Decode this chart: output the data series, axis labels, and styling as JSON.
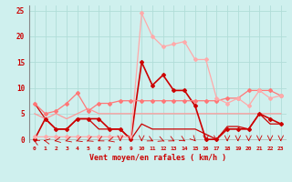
{
  "title": "",
  "xlabel": "Vent moyen/en rafales ( km/h )",
  "bg_color": "#cff0ee",
  "grid_color": "#b0ddd8",
  "xlim": [
    -0.5,
    23.5
  ],
  "ylim": [
    -0.5,
    26
  ],
  "yticks": [
    0,
    5,
    10,
    15,
    20,
    25
  ],
  "xticks": [
    0,
    1,
    2,
    3,
    4,
    5,
    6,
    7,
    8,
    9,
    10,
    11,
    12,
    13,
    14,
    15,
    16,
    17,
    18,
    19,
    20,
    21,
    22,
    23
  ],
  "series": [
    {
      "x": [
        0,
        1,
        2,
        3,
        4,
        5,
        6,
        7,
        8,
        9,
        10,
        11,
        12,
        13,
        14,
        15,
        16,
        17,
        18,
        19,
        20,
        21,
        22,
        23
      ],
      "y": [
        0,
        4,
        2,
        2,
        4,
        4,
        4,
        2,
        2,
        0,
        15,
        10.5,
        12.5,
        9.5,
        9.5,
        6.5,
        0,
        0,
        2,
        2,
        2,
        5,
        4,
        3
      ],
      "color": "#cc0000",
      "lw": 1.2,
      "marker": "D",
      "ms": 2.0
    },
    {
      "x": [
        0,
        1,
        2,
        3,
        4,
        5,
        6,
        7,
        8,
        9,
        10,
        11,
        12,
        13,
        14,
        15,
        16,
        17,
        18,
        19,
        20,
        21,
        22,
        23
      ],
      "y": [
        7,
        4,
        2,
        2,
        4,
        4,
        2,
        2,
        2,
        0,
        3,
        2,
        2,
        2,
        2,
        2,
        1,
        0,
        2.5,
        2.5,
        2,
        5,
        3,
        3
      ],
      "color": "#cc0000",
      "lw": 0.9,
      "marker": null,
      "ms": 0
    },
    {
      "x": [
        0,
        1,
        2,
        3,
        4,
        5,
        6,
        7,
        8,
        9,
        10,
        11,
        12,
        13,
        14,
        15,
        16,
        17,
        18,
        19,
        20,
        21,
        22,
        23
      ],
      "y": [
        7,
        5,
        5.5,
        7,
        9,
        5.5,
        7,
        7,
        7.5,
        7.5,
        7.5,
        7.5,
        7.5,
        7.5,
        7.5,
        7.5,
        7.5,
        7.5,
        8,
        8,
        9.5,
        9.5,
        9.5,
        8.5
      ],
      "color": "#ff7777",
      "lw": 0.9,
      "marker": "D",
      "ms": 2.0
    },
    {
      "x": [
        0,
        1,
        2,
        3,
        4,
        5,
        6,
        7,
        8,
        9,
        10,
        11,
        12,
        13,
        14,
        15,
        16,
        17,
        18,
        19,
        20,
        21,
        22,
        23
      ],
      "y": [
        0.5,
        0.5,
        0.5,
        0.5,
        0.5,
        0.5,
        0.5,
        0.5,
        0.5,
        0.5,
        24.5,
        20,
        18,
        18.5,
        19,
        15.5,
        15.5,
        8,
        7,
        8,
        6.5,
        9.5,
        8,
        8.5
      ],
      "color": "#ffaaaa",
      "lw": 0.9,
      "marker": "D",
      "ms": 2.0
    },
    {
      "x": [
        0,
        1,
        2,
        3,
        4,
        5,
        6,
        7,
        8,
        9,
        10,
        11,
        12,
        13,
        14,
        15,
        16,
        17,
        18,
        19,
        20,
        21,
        22,
        23
      ],
      "y": [
        5,
        4,
        5,
        4,
        5,
        6,
        5,
        5,
        5,
        5,
        5,
        5,
        5,
        5,
        5,
        5,
        5,
        5,
        5,
        5,
        5,
        5,
        5,
        5
      ],
      "color": "#ff9999",
      "lw": 0.9,
      "marker": null,
      "ms": 0
    }
  ],
  "arrows_x": [
    0,
    1,
    2,
    3,
    4,
    5,
    6,
    7,
    8,
    9,
    10,
    11,
    12,
    13,
    14,
    15,
    16,
    17,
    18,
    19,
    20,
    21,
    22,
    23
  ],
  "arrow_color": "#cc0000"
}
